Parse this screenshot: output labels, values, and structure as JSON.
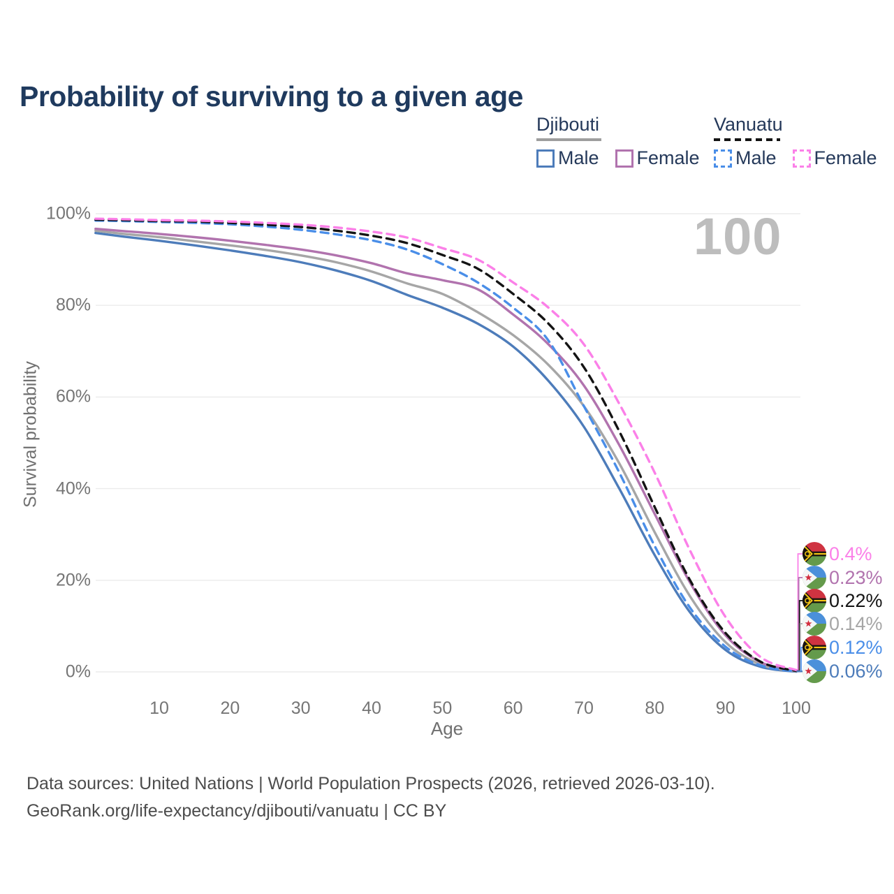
{
  "title": "Probability of surviving to a given age",
  "watermark": "100",
  "legend": {
    "groups": [
      {
        "country": "Djibouti",
        "line_style": "solid",
        "underline_color": "#9e9e9e",
        "items": [
          {
            "label": "Male",
            "color": "#4d7cba"
          },
          {
            "label": "Female",
            "color": "#b173ae"
          }
        ]
      },
      {
        "country": "Vanuatu",
        "line_style": "dashed",
        "underline_color": "#141414",
        "items": [
          {
            "label": "Male",
            "color": "#4a8ee8"
          },
          {
            "label": "Female",
            "color": "#fb80e8"
          }
        ]
      }
    ]
  },
  "y_axis": {
    "title": "Survival probability",
    "ticks": [
      "100%",
      "80%",
      "60%",
      "40%",
      "20%",
      "0%"
    ]
  },
  "x_axis": {
    "title": "Age",
    "ticks": [
      "10",
      "20",
      "30",
      "40",
      "50",
      "60",
      "70",
      "80",
      "90",
      "100"
    ]
  },
  "end_labels": [
    {
      "flag": "vanuatu",
      "value": "0.4%",
      "color": "#fb80e8"
    },
    {
      "flag": "djibouti",
      "value": "0.23%",
      "color": "#b173ae"
    },
    {
      "flag": "vanuatu",
      "value": "0.22%",
      "color": "#141414"
    },
    {
      "flag": "djibouti",
      "value": "0.14%",
      "color": "#a6a6a6"
    },
    {
      "flag": "vanuatu",
      "value": "0.12%",
      "color": "#4a8ee8"
    },
    {
      "flag": "djibouti",
      "value": "0.06%",
      "color": "#4d7cba"
    }
  ],
  "footer": {
    "line1": "Data sources: United Nations | World Population Prospects (2026, retrieved 2026-03-10).",
    "line2": "GeoRank.org/life-expectancy/djibouti/vanuatu | CC BY"
  },
  "chart_data": {
    "type": "line",
    "title": "Probability of surviving to a given age",
    "xlabel": "Age",
    "ylabel": "Survival probability",
    "xlim": [
      0,
      100
    ],
    "ylim": [
      0,
      100
    ],
    "grid": "horizontal",
    "x": [
      1,
      5,
      10,
      15,
      20,
      25,
      30,
      35,
      40,
      45,
      50,
      55,
      60,
      65,
      70,
      75,
      80,
      85,
      90,
      95,
      100
    ],
    "series": [
      {
        "name": "Djibouti Male",
        "color": "#4d7cba",
        "dashed": false,
        "values": [
          95.8,
          95.0,
          94.1,
          93.1,
          92.0,
          90.8,
          89.4,
          87.6,
          85.3,
          82.3,
          79.5,
          76.0,
          71.0,
          63.5,
          53.5,
          40.0,
          25.5,
          13.0,
          4.8,
          1.1,
          0.06
        ]
      },
      {
        "name": "Djibouti Both sexes",
        "color": "#a6a6a6",
        "dashed": false,
        "values": [
          96.3,
          95.6,
          94.9,
          94.0,
          93.1,
          92.1,
          90.9,
          89.4,
          87.4,
          84.8,
          82.5,
          78.5,
          73.5,
          67.0,
          58.0,
          45.5,
          30.5,
          16.5,
          6.5,
          1.6,
          0.14
        ]
      },
      {
        "name": "Djibouti Female",
        "color": "#b173ae",
        "dashed": false,
        "values": [
          96.7,
          96.2,
          95.6,
          94.9,
          94.1,
          93.2,
          92.2,
          90.9,
          89.2,
          87.0,
          85.5,
          83.5,
          78.0,
          71.5,
          62.5,
          49.5,
          34.5,
          19.5,
          8.0,
          2.1,
          0.23
        ]
      },
      {
        "name": "Vanuatu Male",
        "color": "#4a8ee8",
        "dashed": true,
        "values": [
          98.5,
          98.4,
          98.2,
          98.0,
          97.7,
          97.2,
          96.5,
          95.5,
          94.2,
          92.2,
          89.0,
          85.0,
          79.5,
          72.3,
          58.0,
          43.5,
          27.5,
          14.0,
          5.5,
          1.4,
          0.12
        ]
      },
      {
        "name": "Vanuatu Both sexes",
        "color": "#141414",
        "dashed": true,
        "values": [
          98.7,
          98.6,
          98.4,
          98.3,
          98.0,
          97.6,
          97.1,
          96.3,
          95.2,
          93.6,
          91.0,
          88.0,
          82.5,
          76.0,
          66.5,
          52.5,
          36.0,
          20.0,
          8.5,
          2.2,
          0.22
        ]
      },
      {
        "name": "Vanuatu Female",
        "color": "#fb80e8",
        "dashed": true,
        "values": [
          98.9,
          98.8,
          98.6,
          98.5,
          98.3,
          98.0,
          97.6,
          97.0,
          96.1,
          94.8,
          92.5,
          90.0,
          85.0,
          79.5,
          71.5,
          58.5,
          43.5,
          26.5,
          12.0,
          3.2,
          0.4
        ]
      }
    ],
    "end_label_values": [
      "0.4%",
      "0.23%",
      "0.22%",
      "0.14%",
      "0.12%",
      "0.06%"
    ]
  }
}
